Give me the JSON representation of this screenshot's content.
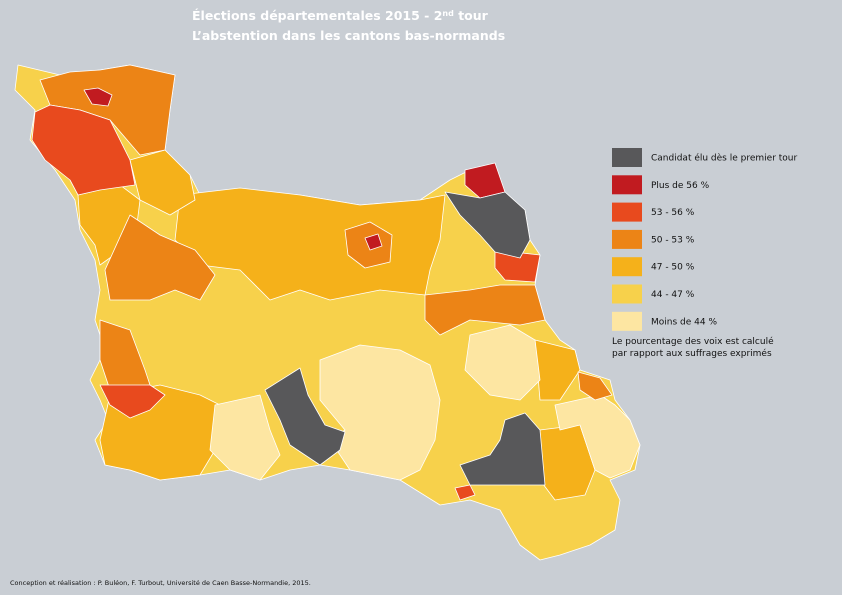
{
  "header": {
    "title_parts": [
      "Élections départementales 2015 - 2",
      "nd",
      " tour"
    ],
    "subtitle": "L’abstention dans les cantons bas-normands"
  },
  "legend": {
    "items": [
      {
        "label": "Candidat élu dès le premier tour",
        "color": "#58585a"
      },
      {
        "label": "Plus de 56 %",
        "color": "#c11b20"
      },
      {
        "label": "53 - 56 %",
        "color": "#e84a1e"
      },
      {
        "label": "50 - 53 %",
        "color": "#ec8416"
      },
      {
        "label": "47 - 50 %",
        "color": "#f5b11a"
      },
      {
        "label": "44 - 47 %",
        "color": "#f7d14b"
      },
      {
        "label": "Moins de 44 %",
        "color": "#fde6a2"
      }
    ],
    "note": [
      "Le pourcentage des voix est calculé",
      "par rapport aux suffrages exprimés"
    ]
  },
  "footer": {
    "credit": "Conception et réalisation : P. Buléon, F. Turbout, Université de Caen Basse-Normandie, 2015."
  }
}
